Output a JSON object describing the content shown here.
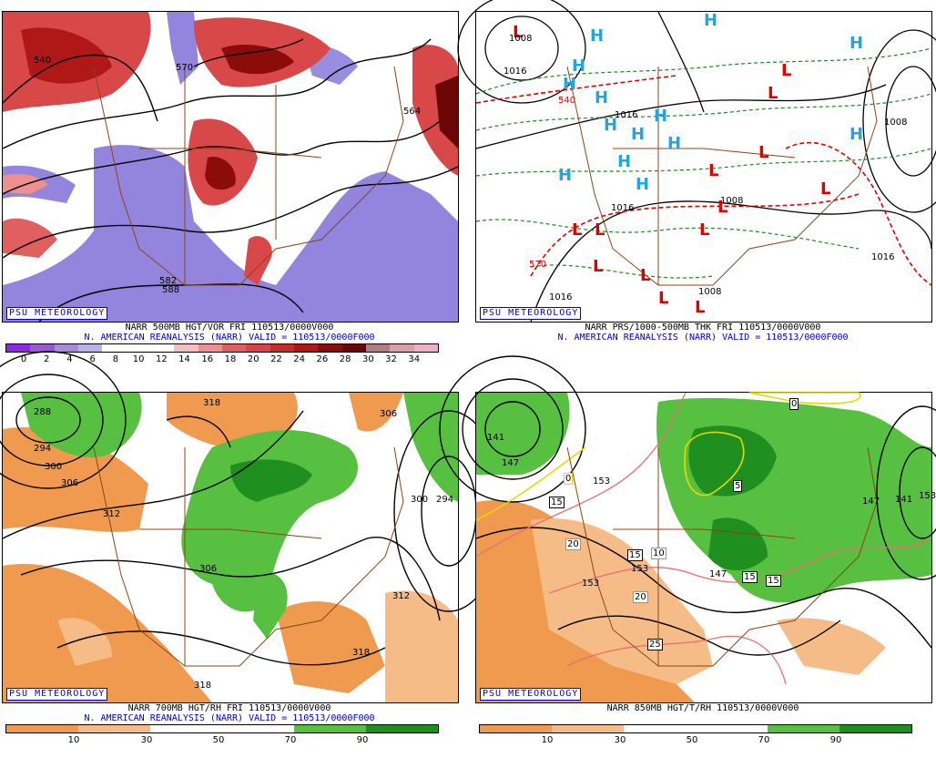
{
  "branding": "PSU METEOROLOGY",
  "panels": {
    "p1": {
      "caption1": "NARR 500MB HGT/VOR FRI 110513/0000V000",
      "caption2": "N. AMERICAN REANALYSIS (NARR) VALID = 110513/0000F000",
      "scale_labels": [
        "0",
        "2",
        "4",
        "6",
        "8",
        "10",
        "12",
        "14",
        "16",
        "18",
        "20",
        "22",
        "24",
        "26",
        "28",
        "30",
        "32",
        "34"
      ],
      "contour_labels": [
        "540",
        "570",
        "582",
        "588",
        "564"
      ]
    },
    "p2": {
      "caption1": "NARR PRS/1000-500MB THK FRI 110513/0000V000",
      "caption2": "N. AMERICAN REANALYSIS (NARR) VALID = 110513/0000F000",
      "contour_labels": [
        "1008",
        "1016",
        "1016",
        "1016",
        "1008",
        "1008",
        "1008",
        "1016",
        "1016",
        "570",
        "540"
      ],
      "high_symbol": "H",
      "low_symbol": "L"
    },
    "p3": {
      "caption1": "NARR 700MB HGT/RH FRI 110513/0000V000",
      "caption2": "N. AMERICAN REANALYSIS (NARR) VALID = 110513/0000F000",
      "scale_labels": [
        "10",
        "30",
        "50",
        "70",
        "90"
      ],
      "contour_labels": [
        "288",
        "294",
        "300",
        "306",
        "312",
        "318",
        "306",
        "300",
        "294",
        "312",
        "318",
        "318",
        "306"
      ]
    },
    "p4": {
      "caption1": "NARR 850MB HGT/T/RH 110513/0000V000",
      "scale_labels": [
        "10",
        "30",
        "50",
        "70",
        "90"
      ],
      "contour_labels": [
        "141",
        "147",
        "153",
        "141",
        "147",
        "153",
        "153",
        "153",
        "147"
      ],
      "temp_labels": [
        "0",
        "5",
        "10",
        "15",
        "20",
        "25",
        "15",
        "15",
        "15",
        "15",
        "20",
        "0"
      ]
    }
  },
  "colors": {
    "vort_scale": [
      "#8a2be2",
      "#9b59d0",
      "#a98bd8",
      "#bdb0e8",
      "#ffffff",
      "#ffffff",
      "#ffffff",
      "#f2c0c0",
      "#ec9090",
      "#e06060",
      "#d64545",
      "#c72c2c",
      "#b01818",
      "#8c0c0c",
      "#6a0606",
      "#b08080",
      "#d8a0a8",
      "#f0b0c8"
    ],
    "rh_scale": [
      "#f09a50",
      "#f6bc88",
      "#ffffff",
      "#ffffff",
      "#58c040",
      "#1f8f1f"
    ]
  }
}
